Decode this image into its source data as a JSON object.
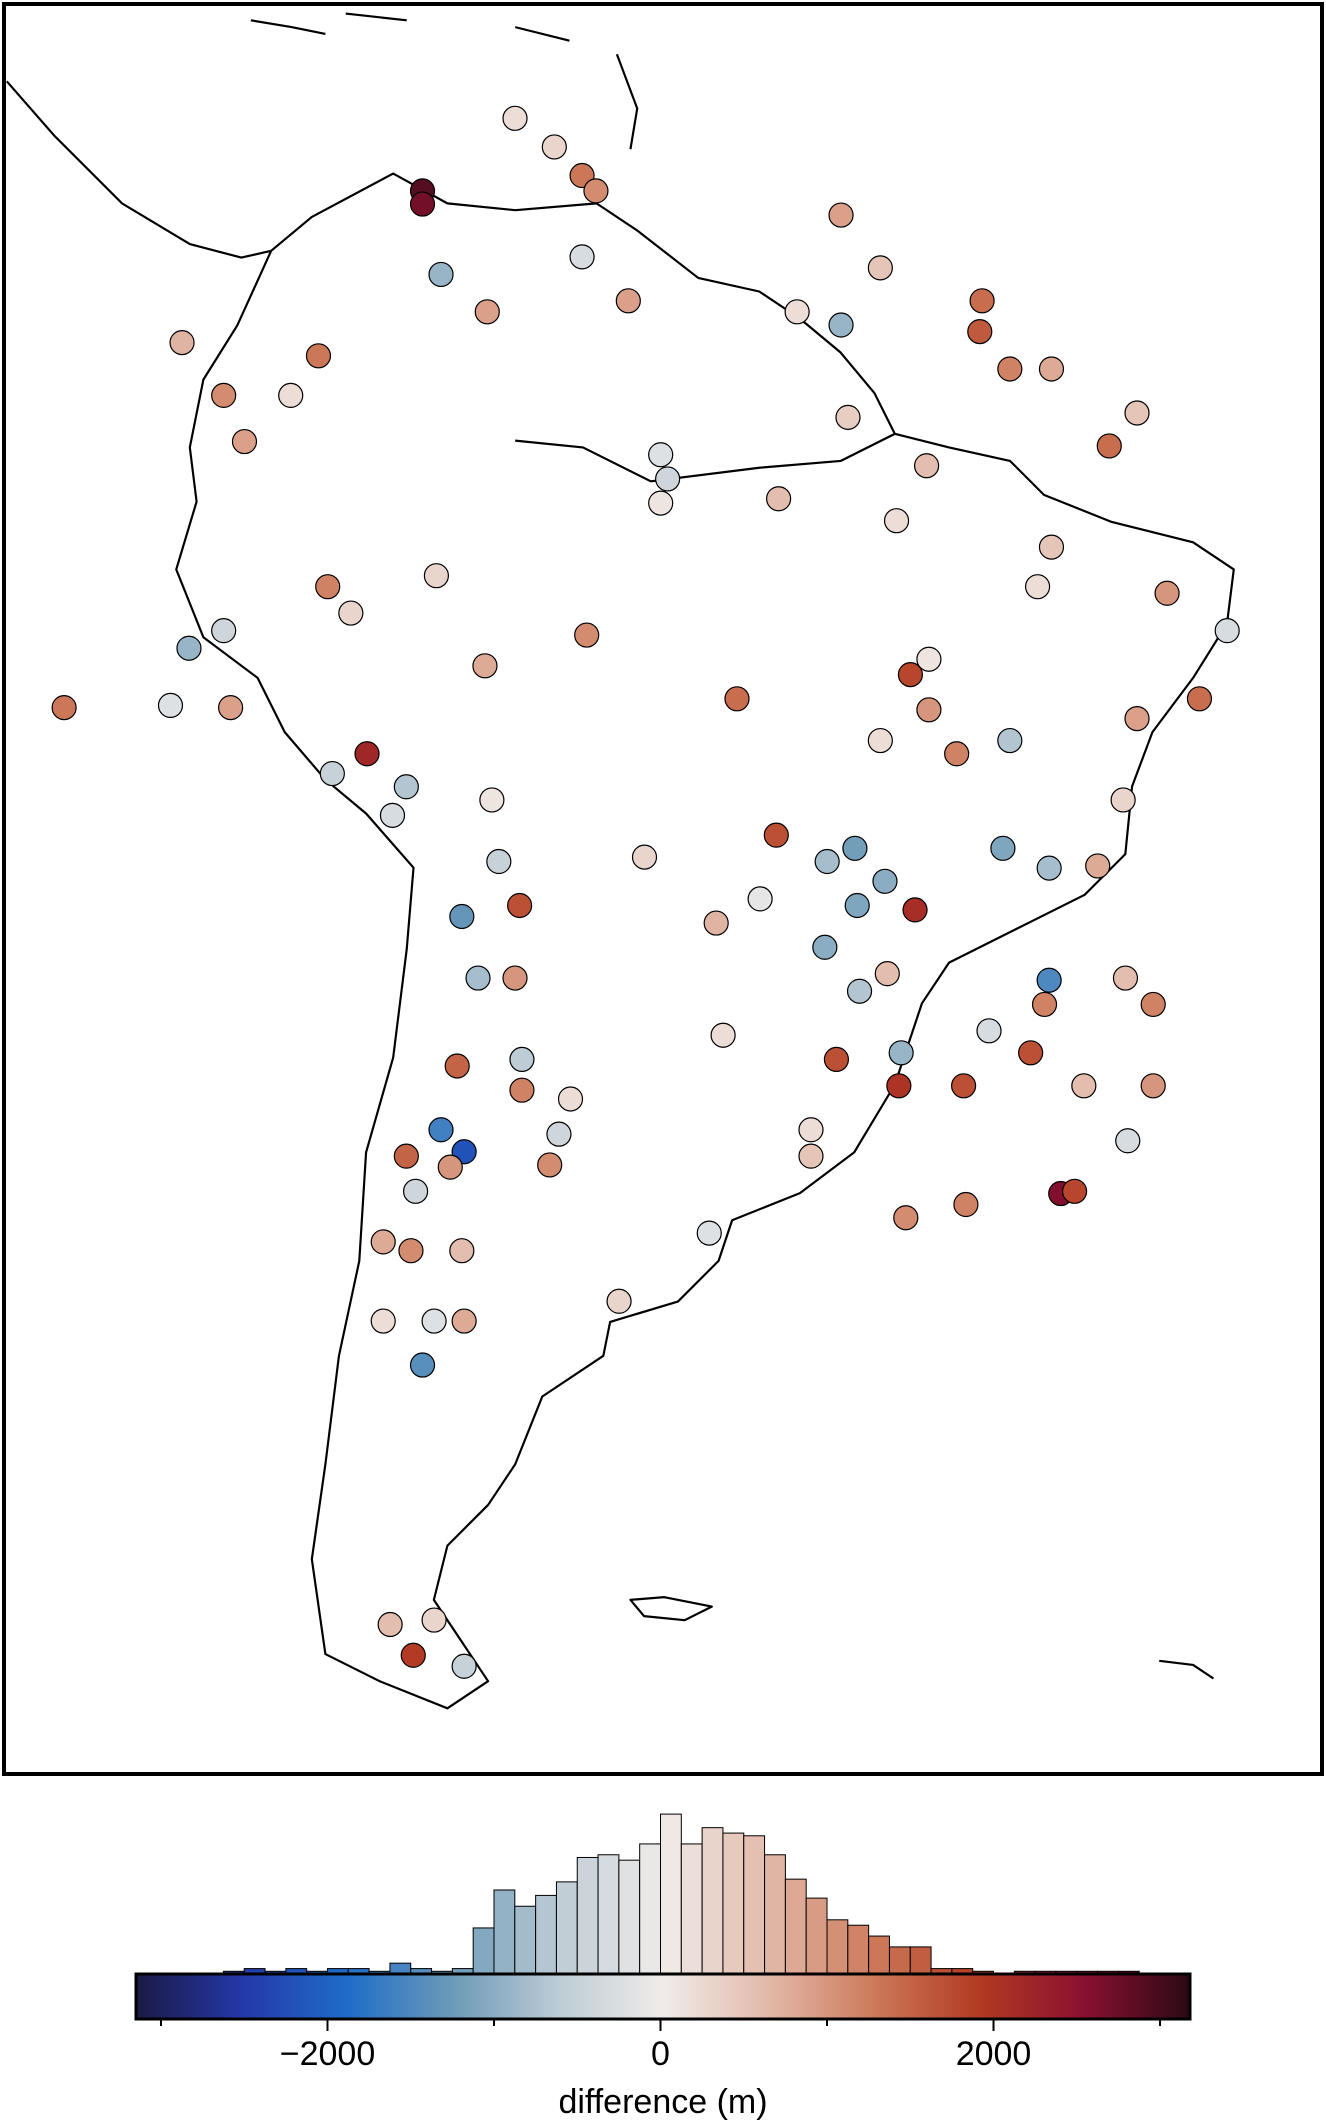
{
  "chart_data": [
    {
      "type": "scatter",
      "xlim": [
        -88,
        -31
      ],
      "ylim": [
        -60.5,
        20
      ],
      "x": [
        -65.9,
        -64.2,
        -69.9,
        -69.9,
        -63.0,
        -62.4,
        -69.1,
        -67.1,
        -63.0,
        -61.0,
        -51.8,
        -50.1,
        -51.8,
        -53.7,
        -45.7,
        -45.8,
        -44.5,
        -42.7,
        -80.3,
        -78.5,
        -75.6,
        -74.4,
        -77.6,
        -59.6,
        -59.3,
        -54.5,
        -59.6,
        -51.5,
        -48.1,
        -40.2,
        -39.0,
        -49.4,
        -42.7,
        -43.3,
        -74.0,
        -73.0,
        -69.3,
        -62.8,
        -67.2,
        -85.4,
        -80.0,
        -78.5,
        -80.8,
        -78.2,
        -56.3,
        -48.8,
        -48.0,
        -48.0,
        -50.1,
        -44.5,
        -46.8,
        -37.7,
        -35.1,
        -36.3,
        -39.0,
        -39.6,
        -72.3,
        -73.8,
        -70.6,
        -71.2,
        -66.9,
        -66.6,
        -68.2,
        -65.7,
        -65.9,
        -67.5,
        -60.3,
        -54.6,
        -51.2,
        -52.4,
        -49.9,
        -44.8,
        -42.8,
        -55.3,
        -51.1,
        -48.6,
        -57.2,
        -52.5,
        -51.0,
        -49.8,
        -42.8,
        -40.7,
        -43.0,
        -46.5,
        -39.5,
        -38.3,
        -45.4,
        -43.6,
        -41.3,
        -38.3,
        -49.3,
        -49.2,
        -52.0,
        -56.9,
        -65.6,
        -68.4,
        -65.6,
        -63.5,
        -69.1,
        -68.1,
        -70.6,
        -68.7,
        -64.4,
        -64.0,
        -70.2,
        -53.1,
        -53.1,
        -39.4,
        -42.3,
        -41.7,
        -49.0,
        -46.4,
        -57.5,
        -61.4,
        -71.6,
        -70.4,
        -68.2,
        -71.6,
        -69.4,
        -68.1,
        -69.9,
        -71.3,
        -69.4,
        -70.3,
        -68.1
      ],
      "y": [
        14.8,
        13.5,
        11.5,
        10.9,
        12.2,
        11.5,
        7.7,
        6.0,
        8.5,
        6.5,
        10.4,
        8.0,
        5.4,
        6.0,
        6.5,
        5.1,
        3.4,
        3.4,
        4.6,
        2.2,
        2.2,
        4.0,
        0.1,
        -0.5,
        -1.6,
        -2.5,
        -2.7,
        1.2,
        -1.0,
        -0.1,
        1.4,
        -3.5,
        -4.7,
        -6.5,
        -6.5,
        -7.7,
        -6.0,
        -8.7,
        -10.1,
        -12.0,
        -9.3,
        -8.5,
        -11.9,
        -12.0,
        -11.6,
        -10.5,
        -9.8,
        -12.1,
        -13.5,
        -13.5,
        -14.1,
        -6.8,
        -8.5,
        -11.6,
        -12.5,
        -16.2,
        -14.1,
        -15.0,
        -15.6,
        -16.9,
        -16.2,
        -19.0,
        -21.5,
        -21.0,
        -24.3,
        -24.3,
        -18.8,
        -17.8,
        -18.4,
        -19.0,
        -19.9,
        -18.4,
        -19.3,
        -20.7,
        -21.0,
        -21.2,
        -21.8,
        -22.9,
        -24.9,
        -24.1,
        -24.4,
        -19.2,
        -25.5,
        -29.2,
        -24.3,
        -25.5,
        -26.7,
        -27.7,
        -29.2,
        -29.2,
        -29.2,
        -27.7,
        -28.0,
        -26.9,
        -28.0,
        -28.3,
        -29.4,
        -29.8,
        -31.2,
        -32.2,
        -32.4,
        -32.9,
        -32.8,
        -31.4,
        -34.0,
        -31.2,
        -32.4,
        -31.7,
        -34.1,
        -34.0,
        -35.2,
        -34.6,
        -35.9,
        -39.0,
        -36.3,
        -36.7,
        -36.7,
        -39.9,
        -39.9,
        -39.9,
        -41.9,
        -53.7,
        -53.5,
        -55.1,
        -55.6
      ],
      "values": [
        200,
        300,
        2900,
        2700,
        1300,
        1100,
        -900,
        900,
        -300,
        900,
        900,
        500,
        -900,
        200,
        1400,
        1600,
        1200,
        800,
        700,
        1100,
        200,
        1300,
        900,
        -200,
        -400,
        600,
        100,
        400,
        600,
        1400,
        500,
        200,
        500,
        200,
        1200,
        300,
        300,
        1100,
        800,
        1300,
        -900,
        -400,
        -200,
        900,
        1400,
        1800,
        100,
        1000,
        200,
        -700,
        1200,
        1000,
        -300,
        1400,
        900,
        300,
        2200,
        -500,
        -700,
        -300,
        100,
        -500,
        -1300,
        1700,
        1000,
        -800,
        300,
        1700,
        -1200,
        -800,
        -1000,
        -1100,
        -800,
        -100,
        -1100,
        2100,
        700,
        -1000,
        -700,
        600,
        -1500,
        800,
        1200,
        1700,
        600,
        1200,
        -300,
        1700,
        600,
        1000,
        2000,
        -900,
        1700,
        200,
        -600,
        1500,
        1200,
        200,
        -1600,
        -2200,
        1500,
        1000,
        1100,
        -400,
        -400,
        200,
        500,
        -300,
        2600,
        1800,
        1100,
        1200,
        -200,
        300,
        800,
        1100,
        600,
        200,
        -200,
        800,
        -1400,
        600,
        300,
        1900,
        -500
      ]
    },
    {
      "type": "histogram",
      "xlabel": "difference (m)",
      "xlim": [
        -3150,
        3180
      ],
      "xticks": [
        {
          "value": -2000,
          "label": "−2000"
        },
        0,
        2000
      ],
      "minor_xticks": [
        -3000,
        -1000,
        1000,
        3000
      ],
      "colors": [
        "#1b1a45",
        "#2438a8",
        "#1f6cc8",
        "#6b9ab8",
        "#bccbd4",
        "#f0ecea",
        "#e2b9a8",
        "#cd7a5a",
        "#b23a22",
        "#8a1030",
        "#2a0a15"
      ],
      "bins": [
        -3125,
        -3000,
        -2875,
        -2750,
        -2625,
        -2500,
        -2375,
        -2250,
        -2125,
        -2000,
        -1875,
        -1750,
        -1625,
        -1500,
        -1375,
        -1250,
        -1125,
        -1000,
        -875,
        -750,
        -625,
        -500,
        -375,
        -250,
        -125,
        0,
        125,
        250,
        375,
        500,
        625,
        750,
        875,
        1000,
        1125,
        1250,
        1375,
        1500,
        1625,
        1750,
        1875,
        2000,
        2125,
        2250,
        2375,
        2500,
        2625,
        2750,
        2875,
        3000,
        3125
      ],
      "counts": [
        0,
        0,
        0,
        0,
        1,
        2,
        1,
        2,
        1,
        2,
        2,
        1,
        4,
        2,
        1,
        2,
        17,
        31,
        25,
        29,
        34,
        43,
        44,
        42,
        48,
        59,
        48,
        54,
        52,
        51,
        44,
        35,
        28,
        20,
        18,
        14,
        10,
        10,
        2,
        2,
        1,
        0,
        1,
        1,
        1,
        1,
        1,
        1,
        0,
        0
      ]
    }
  ]
}
